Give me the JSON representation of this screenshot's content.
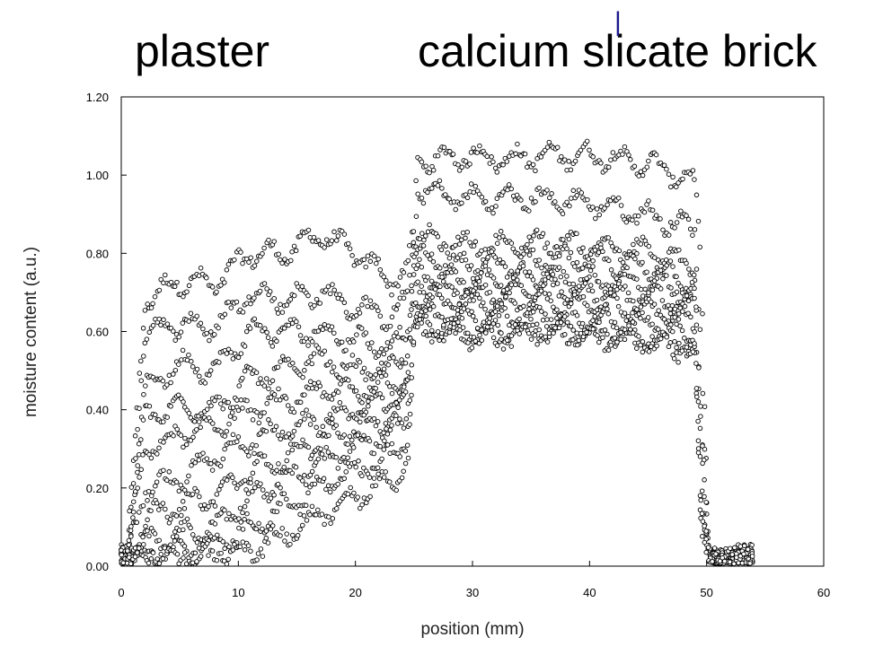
{
  "header": {
    "left_label": "plaster",
    "right_label": "calcium slicate brick",
    "text_cursor": "|"
  },
  "chart_data": {
    "type": "scatter",
    "title": "",
    "xlabel": "position (mm)",
    "ylabel": "moisture content (a.u.)",
    "xlim": [
      0,
      60
    ],
    "ylim": [
      0,
      1.2
    ],
    "x_ticks": [
      0,
      10,
      20,
      30,
      40,
      50,
      60
    ],
    "x_tick_labels": [
      "0",
      "10",
      "20",
      "30",
      "40",
      "50",
      "60"
    ],
    "y_ticks": [
      0,
      0.2,
      0.4,
      0.6,
      0.8,
      1.0,
      1.2
    ],
    "y_tick_labels": [
      "0.00",
      "0.20",
      "0.40",
      "0.60",
      "0.80",
      "1.00",
      "1.20"
    ],
    "grid": false,
    "legend": "none",
    "marker": "open circle",
    "marker_color": "#000000",
    "regions": [
      {
        "label": "plaster",
        "x_range": [
          0,
          25
        ]
      },
      {
        "label": "calcium slicate brick",
        "x_range": [
          25,
          50
        ]
      }
    ],
    "series": [
      {
        "x": [
          0.5,
          2,
          5,
          8,
          11,
          14,
          17,
          20,
          23,
          24.5,
          25,
          25.3,
          27,
          30,
          33,
          36,
          40,
          43,
          46,
          49,
          49.5,
          50.2,
          51,
          54
        ],
        "y": [
          0.02,
          0.68,
          0.73,
          0.72,
          0.8,
          0.8,
          0.85,
          0.8,
          0.73,
          0.76,
          0.85,
          1.04,
          1.04,
          1.05,
          1.04,
          1.05,
          1.05,
          1.04,
          1.02,
          0.98,
          0.8,
          0.02,
          0.01,
          0.02
        ]
      },
      {
        "x": [
          0.5,
          2,
          5,
          8,
          11,
          14,
          17,
          20,
          23,
          24.5,
          25,
          25.3,
          27,
          30,
          33,
          36,
          40,
          43,
          46,
          49,
          49.5,
          50.2,
          51,
          54
        ],
        "y": [
          0.02,
          0.6,
          0.62,
          0.61,
          0.7,
          0.68,
          0.7,
          0.66,
          0.64,
          0.68,
          0.84,
          0.97,
          0.95,
          0.94,
          0.94,
          0.94,
          0.93,
          0.91,
          0.89,
          0.86,
          0.6,
          0.02,
          0.01,
          0.02
        ]
      },
      {
        "x": [
          0.5,
          2,
          5,
          8,
          11,
          14,
          17,
          20,
          23,
          24.5,
          25,
          25.3,
          27,
          30,
          33,
          36,
          40,
          43,
          46,
          49,
          49.5,
          50.2,
          51,
          54
        ],
        "y": [
          0.02,
          0.45,
          0.52,
          0.5,
          0.6,
          0.6,
          0.6,
          0.58,
          0.56,
          0.6,
          0.83,
          0.84,
          0.83,
          0.82,
          0.82,
          0.83,
          0.82,
          0.81,
          0.8,
          0.76,
          0.4,
          0.02,
          0.01,
          0.02
        ]
      },
      {
        "x": [
          0.5,
          2,
          5,
          8,
          11,
          14,
          17,
          20,
          23,
          24.5,
          25,
          25.3,
          27,
          30,
          33,
          36,
          40,
          43,
          46,
          49,
          49.5,
          50.2,
          51,
          54
        ],
        "y": [
          0.02,
          0.38,
          0.41,
          0.4,
          0.48,
          0.5,
          0.53,
          0.5,
          0.5,
          0.55,
          0.8,
          0.8,
          0.78,
          0.77,
          0.77,
          0.78,
          0.78,
          0.77,
          0.76,
          0.72,
          0.35,
          0.02,
          0.01,
          0.02
        ]
      },
      {
        "x": [
          0.5,
          2,
          5,
          8,
          11,
          14,
          17,
          20,
          23,
          24.5,
          25,
          25.3,
          27,
          30,
          33,
          36,
          40,
          43,
          46,
          49,
          49.5,
          50.2,
          51,
          54
        ],
        "y": [
          0.02,
          0.3,
          0.33,
          0.36,
          0.4,
          0.42,
          0.45,
          0.45,
          0.46,
          0.5,
          0.75,
          0.75,
          0.74,
          0.73,
          0.73,
          0.74,
          0.73,
          0.73,
          0.72,
          0.7,
          0.3,
          0.02,
          0.01,
          0.02
        ]
      },
      {
        "x": [
          0.5,
          2,
          5,
          8,
          11,
          14,
          17,
          20,
          23,
          24.5,
          25,
          25.3,
          27,
          30,
          33,
          36,
          40,
          43,
          46,
          49,
          49.5,
          50.2,
          51,
          54
        ],
        "y": [
          0.02,
          0.2,
          0.22,
          0.28,
          0.32,
          0.35,
          0.37,
          0.4,
          0.42,
          0.46,
          0.72,
          0.72,
          0.71,
          0.7,
          0.7,
          0.71,
          0.7,
          0.69,
          0.69,
          0.66,
          0.25,
          0.02,
          0.01,
          0.02
        ]
      },
      {
        "x": [
          0.5,
          2,
          5,
          8,
          11,
          14,
          17,
          20,
          23,
          24.5,
          25,
          25.3,
          27,
          30,
          33,
          36,
          40,
          43,
          46,
          49,
          49.5,
          50.2,
          51,
          54
        ],
        "y": [
          0.02,
          0.12,
          0.15,
          0.18,
          0.24,
          0.28,
          0.32,
          0.35,
          0.38,
          0.42,
          0.68,
          0.68,
          0.68,
          0.67,
          0.67,
          0.68,
          0.67,
          0.66,
          0.66,
          0.62,
          0.2,
          0.02,
          0.01,
          0.02
        ]
      },
      {
        "x": [
          0.5,
          2,
          5,
          8,
          11,
          14,
          17,
          20,
          23,
          24.5,
          25,
          25.3,
          27,
          30,
          33,
          36,
          40,
          43,
          46,
          49,
          49.5,
          50.2,
          51,
          54
        ],
        "y": [
          0.02,
          0.06,
          0.08,
          0.1,
          0.18,
          0.22,
          0.26,
          0.3,
          0.34,
          0.38,
          0.64,
          0.65,
          0.64,
          0.63,
          0.63,
          0.64,
          0.63,
          0.62,
          0.62,
          0.58,
          0.15,
          0.02,
          0.01,
          0.02
        ]
      },
      {
        "x": [
          0.5,
          2,
          5,
          8,
          11,
          14,
          17,
          20,
          23,
          24.5,
          25,
          25.3,
          27,
          30,
          33,
          36,
          40,
          43,
          46,
          49,
          49.5,
          50.2,
          51,
          54
        ],
        "y": [
          0.02,
          0.03,
          0.04,
          0.05,
          0.1,
          0.15,
          0.2,
          0.24,
          0.28,
          0.32,
          0.6,
          0.62,
          0.61,
          0.6,
          0.6,
          0.61,
          0.6,
          0.59,
          0.58,
          0.56,
          0.1,
          0.02,
          0.01,
          0.02
        ]
      },
      {
        "x": [
          0.5,
          2,
          5,
          8,
          11,
          14,
          17,
          20,
          23,
          24.5,
          25,
          25.3,
          27,
          30,
          33,
          36,
          40,
          43,
          46,
          49,
          49.5,
          50.2,
          51,
          54
        ],
        "y": [
          0.02,
          0.02,
          0.02,
          0.02,
          0.04,
          0.08,
          0.13,
          0.18,
          0.22,
          0.26,
          0.56,
          0.6,
          0.6,
          0.59,
          0.59,
          0.6,
          0.59,
          0.58,
          0.57,
          0.55,
          0.08,
          0.02,
          0.01,
          0.02
        ]
      }
    ]
  }
}
